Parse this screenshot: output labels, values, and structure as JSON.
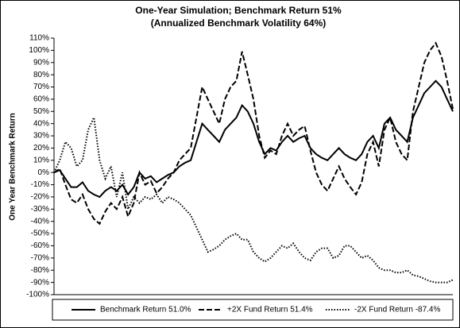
{
  "chart_data": {
    "type": "line",
    "title": "One-Year Simulation; Benchmark Return 51%",
    "subtitle": "(Annualized Benchmark Volatility 64%)",
    "y_label": "One Year Benchmark Return",
    "ylim": [
      -100,
      110
    ],
    "yticks": [
      {
        "value": -100,
        "label": "-100%"
      },
      {
        "value": -90,
        "label": "-90%"
      },
      {
        "value": -80,
        "label": "-80%"
      },
      {
        "value": -70,
        "label": "-70%"
      },
      {
        "value": -60,
        "label": "-60%"
      },
      {
        "value": -50,
        "label": "-50%"
      },
      {
        "value": -40,
        "label": "-40%"
      },
      {
        "value": -30,
        "label": "-30%"
      },
      {
        "value": -20,
        "label": "-20%"
      },
      {
        "value": -10,
        "label": "-10%"
      },
      {
        "value": 0,
        "label": "0%"
      },
      {
        "value": 10,
        "label": "10%"
      },
      {
        "value": 20,
        "label": "20%"
      },
      {
        "value": 30,
        "label": "30%"
      },
      {
        "value": 40,
        "label": "40%"
      },
      {
        "value": 50,
        "label": "50%"
      },
      {
        "value": 60,
        "label": "60%"
      },
      {
        "value": 70,
        "label": "70%"
      },
      {
        "value": 80,
        "label": "80%"
      },
      {
        "value": 90,
        "label": "90%"
      },
      {
        "value": 100,
        "label": "100%"
      },
      {
        "value": 110,
        "label": "110%"
      }
    ],
    "legend": "bottom",
    "series": [
      {
        "name": "Benchmark Return 51.0%",
        "color": "#000000",
        "dash": "solid",
        "values": [
          0,
          2,
          -5,
          -12,
          -12,
          -8,
          -15,
          -18,
          -20,
          -15,
          -12,
          -15,
          -10,
          -18,
          -12,
          0,
          -5,
          -3,
          -8,
          -5,
          -2,
          0,
          5,
          8,
          10,
          25,
          40,
          35,
          30,
          25,
          35,
          40,
          45,
          55,
          50,
          40,
          25,
          15,
          20,
          18,
          25,
          30,
          25,
          28,
          30,
          20,
          15,
          12,
          10,
          15,
          20,
          15,
          12,
          10,
          15,
          25,
          30,
          20,
          40,
          45,
          35,
          30,
          25,
          45,
          55,
          65,
          70,
          75,
          70,
          60,
          50
        ]
      },
      {
        "name": "+2X Fund Return 51.4%",
        "color": "#000000",
        "dash": "dashed",
        "values": [
          0,
          3,
          -10,
          -22,
          -25,
          -18,
          -30,
          -38,
          -42,
          -32,
          -25,
          -30,
          -20,
          -36,
          -25,
          0,
          -10,
          -7,
          -17,
          -12,
          -5,
          0,
          10,
          15,
          20,
          45,
          70,
          60,
          50,
          40,
          60,
          70,
          75,
          99,
          80,
          60,
          30,
          12,
          18,
          15,
          30,
          40,
          30,
          35,
          38,
          18,
          0,
          -10,
          -15,
          -5,
          5,
          -5,
          -12,
          -18,
          -8,
          15,
          25,
          5,
          35,
          45,
          25,
          15,
          10,
          50,
          70,
          90,
          100,
          106,
          95,
          75,
          52
        ]
      },
      {
        "name": "-2X Fund Return -87.4%",
        "color": "#000000",
        "dash": "dotted",
        "values": [
          0,
          10,
          25,
          20,
          5,
          10,
          35,
          45,
          10,
          -5,
          5,
          -20,
          0,
          -30,
          -20,
          -25,
          -20,
          -22,
          -18,
          -25,
          -20,
          -22,
          -25,
          -30,
          -35,
          -45,
          -55,
          -65,
          -63,
          -60,
          -55,
          -52,
          -50,
          -55,
          -55,
          -65,
          -70,
          -73,
          -70,
          -65,
          -60,
          -62,
          -58,
          -65,
          -70,
          -72,
          -65,
          -62,
          -62,
          -70,
          -68,
          -60,
          -60,
          -65,
          -70,
          -68,
          -72,
          -78,
          -80,
          -80,
          -82,
          -82,
          -80,
          -84,
          -85,
          -87,
          -89,
          -90,
          -90,
          -90,
          -88
        ]
      }
    ]
  }
}
